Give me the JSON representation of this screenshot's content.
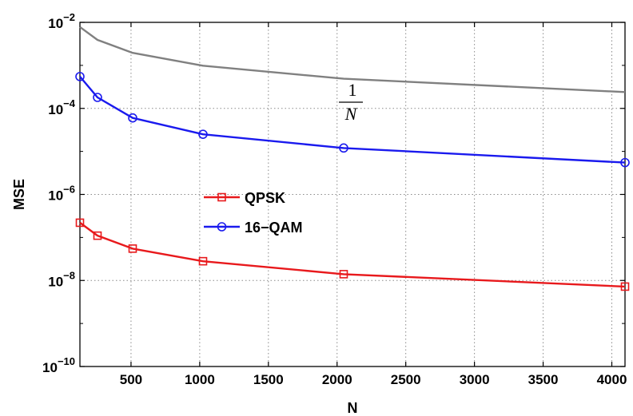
{
  "chart_data": {
    "type": "line",
    "title": "",
    "xlabel": "N",
    "ylabel": "MSE",
    "xlim": [
      128,
      4096
    ],
    "ylim": [
      1e-10,
      0.01
    ],
    "yscale": "log",
    "grid": true,
    "legend_position": "middle-left",
    "x_ticks": [
      500,
      1000,
      1500,
      2000,
      2500,
      3000,
      3500,
      4000
    ],
    "y_ticks": [
      {
        "value": 1e-10,
        "base": "10",
        "exp": "−10"
      },
      {
        "value": 1e-08,
        "base": "10",
        "exp": "−8"
      },
      {
        "value": 1e-06,
        "base": "10",
        "exp": "−6"
      },
      {
        "value": 0.0001,
        "base": "10",
        "exp": "−4"
      },
      {
        "value": 0.01,
        "base": "10",
        "exp": "−2"
      }
    ],
    "series": [
      {
        "name": "QPSK",
        "color": "#e8191c",
        "marker": "square",
        "x": [
          128,
          256,
          512,
          1024,
          2048,
          4096
        ],
        "y": [
          2.2e-07,
          1.1e-07,
          5.5e-08,
          2.8e-08,
          1.4e-08,
          7.2e-09
        ]
      },
      {
        "name": "16−QAM",
        "color": "#1a1aee",
        "marker": "circle",
        "x": [
          128,
          256,
          512,
          1024,
          2048,
          4096
        ],
        "y": [
          0.00055,
          0.00018,
          6e-05,
          2.5e-05,
          1.2e-05,
          5.5e-06
        ]
      },
      {
        "name": "",
        "color": "#808080",
        "marker": "none",
        "x": [
          128,
          256,
          512,
          1024,
          2048,
          4096
        ],
        "y": [
          0.0078,
          0.0039,
          0.00195,
          0.00098,
          0.00049,
          0.00024
        ]
      }
    ],
    "annotation": {
      "numerator": "1",
      "denominator": "N"
    }
  }
}
